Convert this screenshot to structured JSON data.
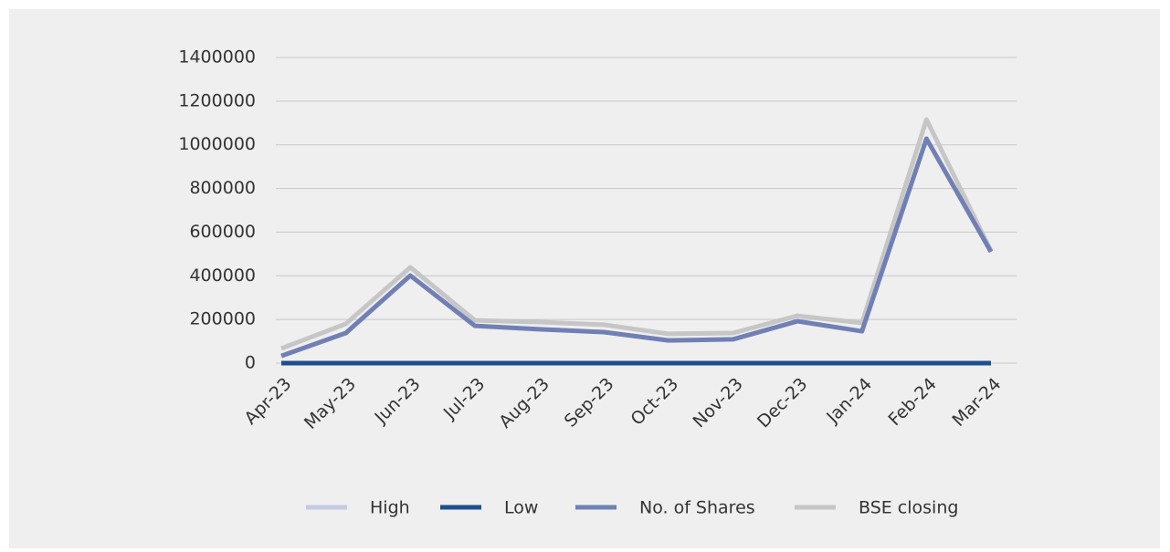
{
  "chart_data": {
    "type": "line",
    "categories": [
      "Apr-23",
      "May-23",
      "Jun-23",
      "Jul-23",
      "Aug-23",
      "Sep-23",
      "Oct-23",
      "Nov-23",
      "Dec-23",
      "Jan-24",
      "Feb-24",
      "Mar-24"
    ],
    "series": [
      {
        "name": "High",
        "color": "#c5c9e2",
        "values": [
          0,
          0,
          0,
          0,
          0,
          0,
          0,
          0,
          0,
          0,
          0,
          0
        ]
      },
      {
        "name": "Low",
        "color": "#1f4e8c",
        "values": [
          0,
          0,
          0,
          0,
          0,
          0,
          0,
          0,
          0,
          0,
          0,
          0
        ]
      },
      {
        "name": "No. of Shares",
        "color": "#7080b4",
        "values": [
          33000,
          138000,
          401000,
          171000,
          155000,
          142000,
          104000,
          109000,
          192000,
          146000,
          1028000,
          510000
        ]
      },
      {
        "name": "BSE closing",
        "color": "#c6c6c6",
        "values": [
          67000,
          180000,
          439000,
          196000,
          188000,
          176000,
          134000,
          138000,
          217000,
          184000,
          1116000,
          514000
        ]
      }
    ],
    "ylim": [
      0,
      1400000
    ],
    "yticks": [
      0,
      200000,
      400000,
      600000,
      800000,
      1000000,
      1200000,
      1400000
    ],
    "grid": true
  }
}
